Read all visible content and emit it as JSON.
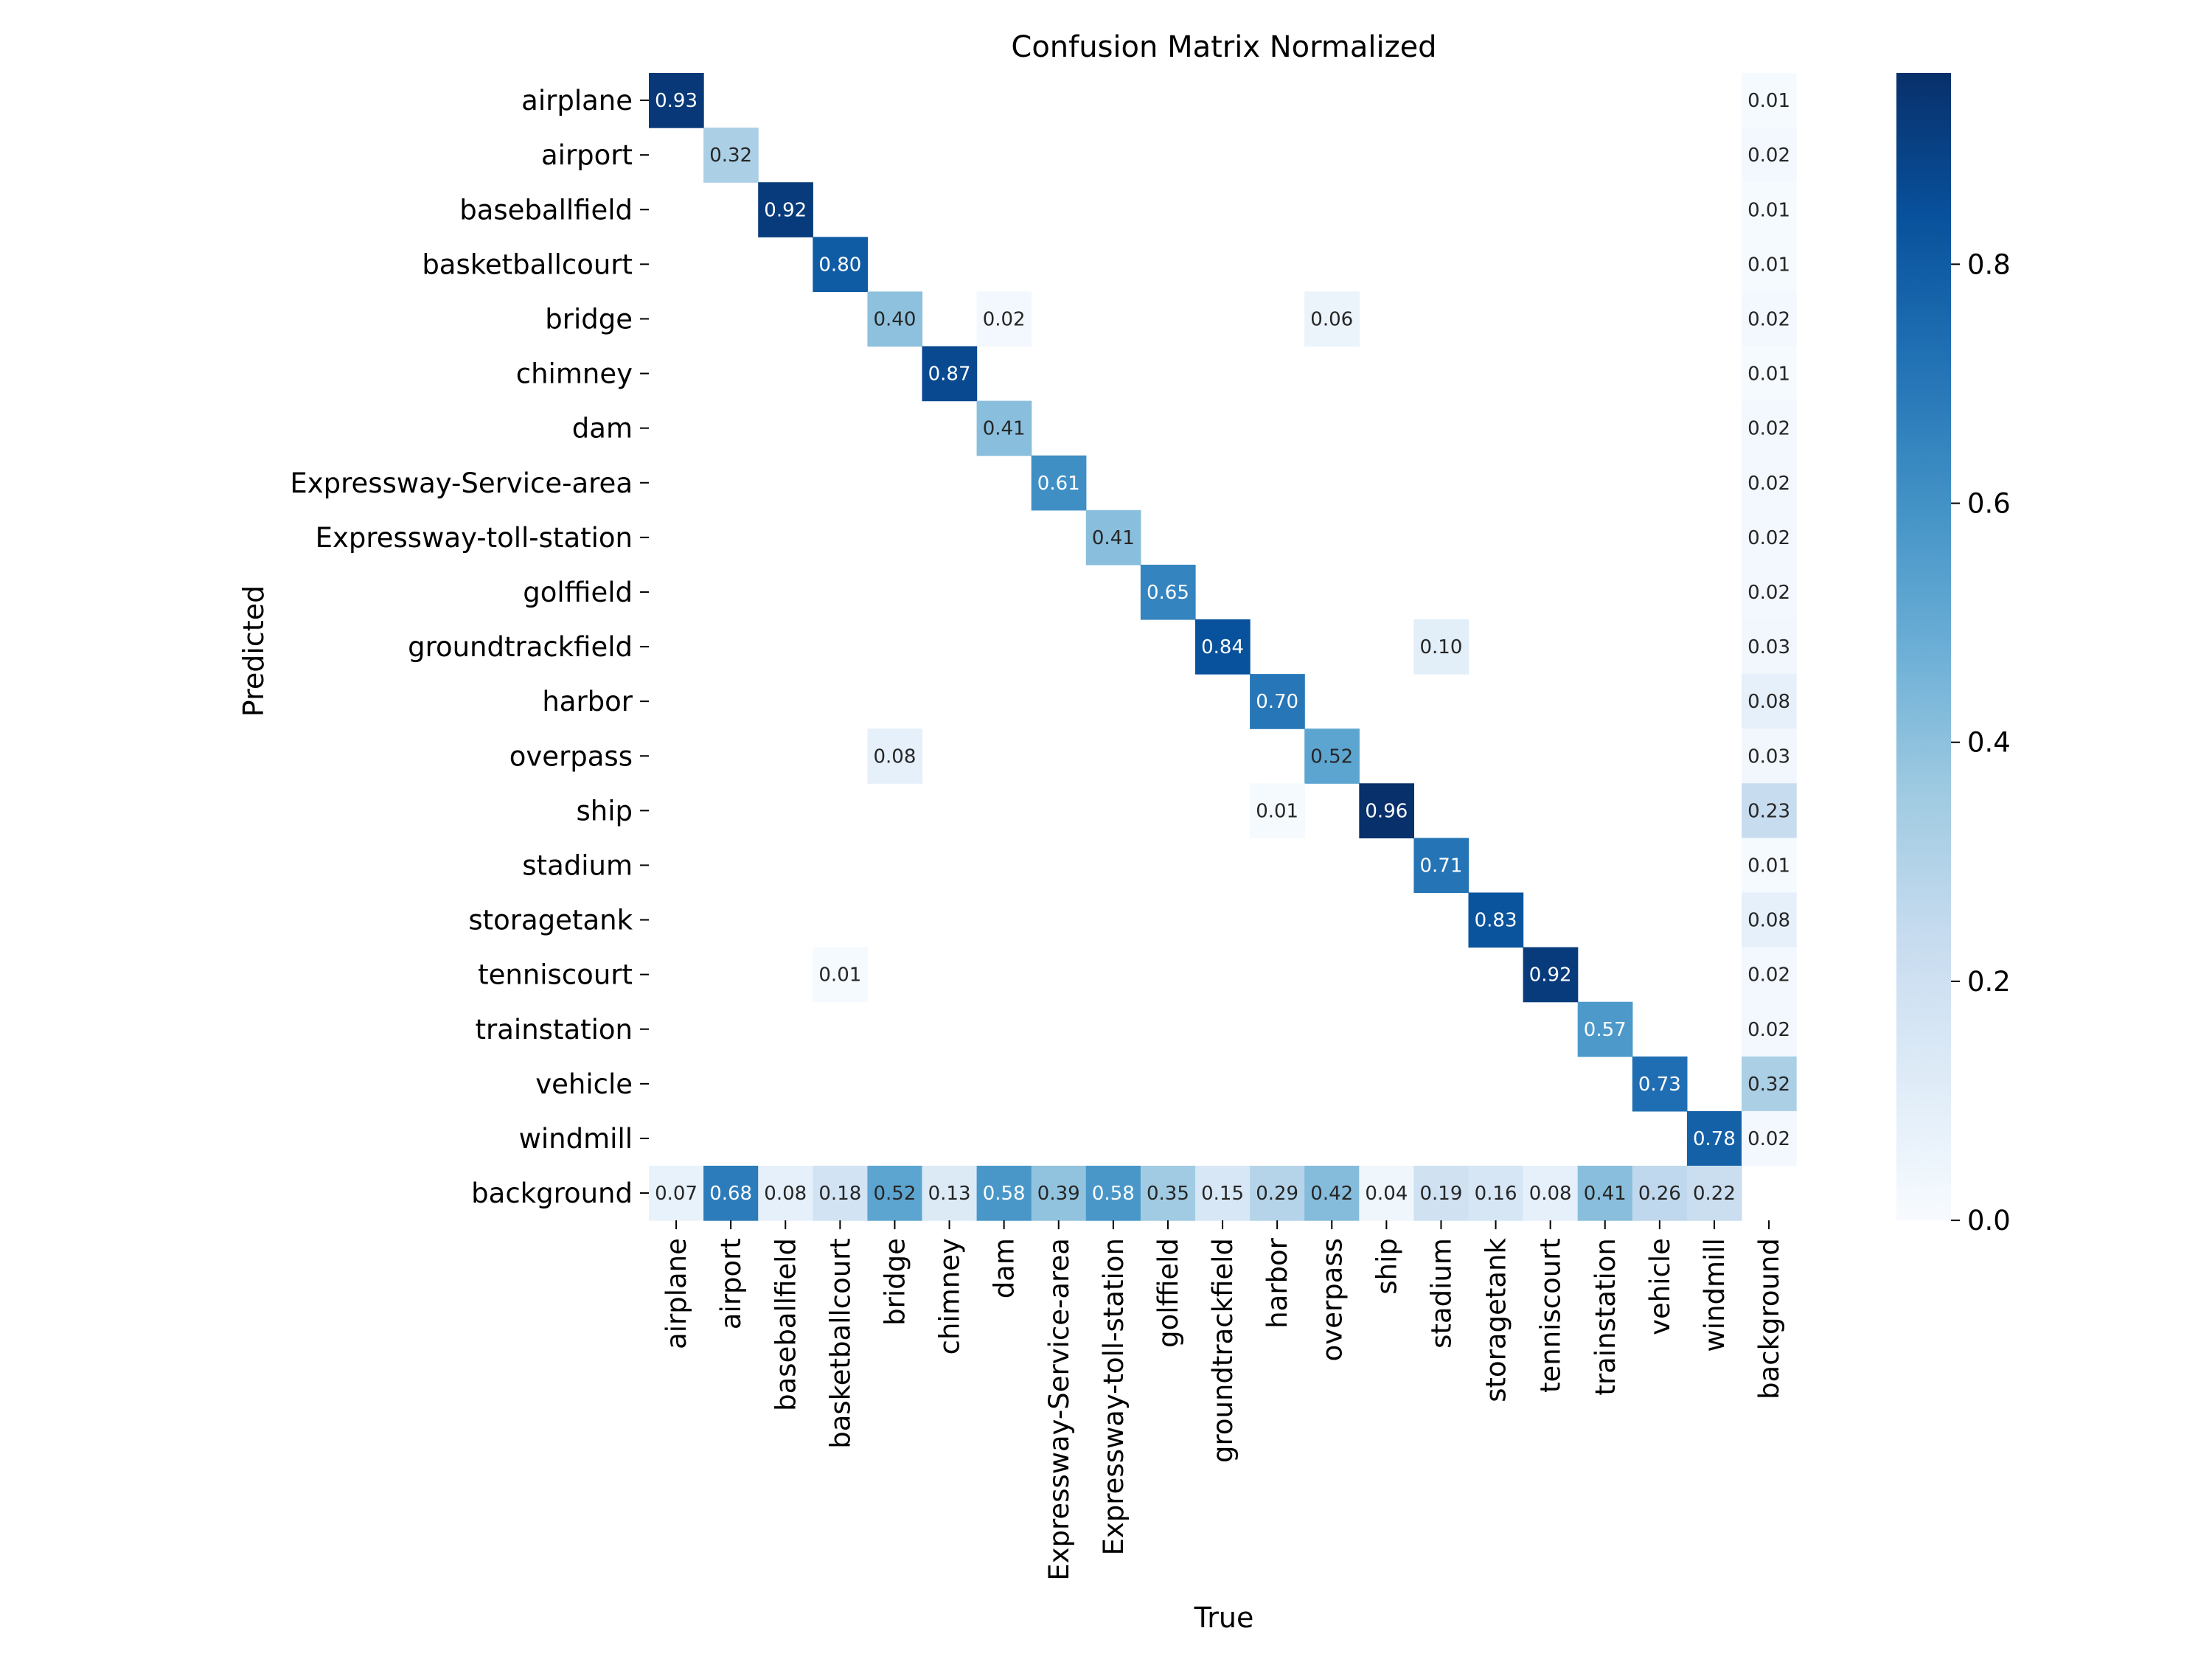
{
  "chart_data": {
    "type": "heatmap",
    "title": "Confusion Matrix Normalized",
    "xlabel": "True",
    "ylabel": "Predicted",
    "colormap": "Blues",
    "vmin": 0.0,
    "vmax": 0.96,
    "colorbar_ticks": [
      0.0,
      0.2,
      0.4,
      0.6,
      0.8
    ],
    "colorbar_tick_labels": [
      "0.0",
      "0.2",
      "0.4",
      "0.6",
      "0.8"
    ],
    "categories": [
      "airplane",
      "airport",
      "baseballfield",
      "basketballcourt",
      "bridge",
      "chimney",
      "dam",
      "Expressway-Service-area",
      "Expressway-toll-station",
      "golffield",
      "groundtrackfield",
      "harbor",
      "overpass",
      "ship",
      "stadium",
      "storagetank",
      "tenniscourt",
      "trainstation",
      "vehicle",
      "windmill",
      "background"
    ],
    "cells": [
      {
        "row": 0,
        "col": 0,
        "value": 0.93,
        "label": "0.93"
      },
      {
        "row": 0,
        "col": 20,
        "value": 0.01,
        "label": "0.01"
      },
      {
        "row": 1,
        "col": 1,
        "value": 0.32,
        "label": "0.32"
      },
      {
        "row": 1,
        "col": 20,
        "value": 0.02,
        "label": "0.02"
      },
      {
        "row": 2,
        "col": 2,
        "value": 0.92,
        "label": "0.92"
      },
      {
        "row": 2,
        "col": 20,
        "value": 0.01,
        "label": "0.01"
      },
      {
        "row": 3,
        "col": 3,
        "value": 0.8,
        "label": "0.80"
      },
      {
        "row": 3,
        "col": 20,
        "value": 0.01,
        "label": "0.01"
      },
      {
        "row": 4,
        "col": 4,
        "value": 0.4,
        "label": "0.40"
      },
      {
        "row": 4,
        "col": 6,
        "value": 0.02,
        "label": "0.02"
      },
      {
        "row": 4,
        "col": 12,
        "value": 0.06,
        "label": "0.06"
      },
      {
        "row": 4,
        "col": 20,
        "value": 0.02,
        "label": "0.02"
      },
      {
        "row": 5,
        "col": 5,
        "value": 0.87,
        "label": "0.87"
      },
      {
        "row": 5,
        "col": 20,
        "value": 0.01,
        "label": "0.01"
      },
      {
        "row": 6,
        "col": 6,
        "value": 0.41,
        "label": "0.41"
      },
      {
        "row": 6,
        "col": 20,
        "value": 0.02,
        "label": "0.02"
      },
      {
        "row": 7,
        "col": 7,
        "value": 0.61,
        "label": "0.61"
      },
      {
        "row": 7,
        "col": 20,
        "value": 0.02,
        "label": "0.02"
      },
      {
        "row": 8,
        "col": 8,
        "value": 0.41,
        "label": "0.41"
      },
      {
        "row": 8,
        "col": 20,
        "value": 0.02,
        "label": "0.02"
      },
      {
        "row": 9,
        "col": 9,
        "value": 0.65,
        "label": "0.65"
      },
      {
        "row": 9,
        "col": 20,
        "value": 0.02,
        "label": "0.02"
      },
      {
        "row": 10,
        "col": 10,
        "value": 0.84,
        "label": "0.84"
      },
      {
        "row": 10,
        "col": 14,
        "value": 0.1,
        "label": "0.10"
      },
      {
        "row": 10,
        "col": 20,
        "value": 0.03,
        "label": "0.03"
      },
      {
        "row": 11,
        "col": 11,
        "value": 0.7,
        "label": "0.70"
      },
      {
        "row": 11,
        "col": 20,
        "value": 0.08,
        "label": "0.08"
      },
      {
        "row": 12,
        "col": 4,
        "value": 0.08,
        "label": "0.08"
      },
      {
        "row": 12,
        "col": 12,
        "value": 0.52,
        "label": "0.52"
      },
      {
        "row": 12,
        "col": 20,
        "value": 0.03,
        "label": "0.03"
      },
      {
        "row": 13,
        "col": 11,
        "value": 0.01,
        "label": "0.01"
      },
      {
        "row": 13,
        "col": 13,
        "value": 0.96,
        "label": "0.96"
      },
      {
        "row": 13,
        "col": 20,
        "value": 0.23,
        "label": "0.23"
      },
      {
        "row": 14,
        "col": 14,
        "value": 0.71,
        "label": "0.71"
      },
      {
        "row": 14,
        "col": 20,
        "value": 0.01,
        "label": "0.01"
      },
      {
        "row": 15,
        "col": 15,
        "value": 0.83,
        "label": "0.83"
      },
      {
        "row": 15,
        "col": 20,
        "value": 0.08,
        "label": "0.08"
      },
      {
        "row": 16,
        "col": 3,
        "value": 0.01,
        "label": "0.01"
      },
      {
        "row": 16,
        "col": 16,
        "value": 0.92,
        "label": "0.92"
      },
      {
        "row": 16,
        "col": 20,
        "value": 0.02,
        "label": "0.02"
      },
      {
        "row": 17,
        "col": 17,
        "value": 0.57,
        "label": "0.57"
      },
      {
        "row": 17,
        "col": 20,
        "value": 0.02,
        "label": "0.02"
      },
      {
        "row": 18,
        "col": 18,
        "value": 0.73,
        "label": "0.73"
      },
      {
        "row": 18,
        "col": 20,
        "value": 0.32,
        "label": "0.32"
      },
      {
        "row": 19,
        "col": 19,
        "value": 0.78,
        "label": "0.78"
      },
      {
        "row": 19,
        "col": 20,
        "value": 0.02,
        "label": "0.02"
      },
      {
        "row": 20,
        "col": 0,
        "value": 0.07,
        "label": "0.07"
      },
      {
        "row": 20,
        "col": 1,
        "value": 0.68,
        "label": "0.68"
      },
      {
        "row": 20,
        "col": 2,
        "value": 0.08,
        "label": "0.08"
      },
      {
        "row": 20,
        "col": 3,
        "value": 0.18,
        "label": "0.18"
      },
      {
        "row": 20,
        "col": 4,
        "value": 0.52,
        "label": "0.52"
      },
      {
        "row": 20,
        "col": 5,
        "value": 0.13,
        "label": "0.13"
      },
      {
        "row": 20,
        "col": 6,
        "value": 0.58,
        "label": "0.58"
      },
      {
        "row": 20,
        "col": 7,
        "value": 0.39,
        "label": "0.39"
      },
      {
        "row": 20,
        "col": 8,
        "value": 0.58,
        "label": "0.58"
      },
      {
        "row": 20,
        "col": 9,
        "value": 0.35,
        "label": "0.35"
      },
      {
        "row": 20,
        "col": 10,
        "value": 0.15,
        "label": "0.15"
      },
      {
        "row": 20,
        "col": 11,
        "value": 0.29,
        "label": "0.29"
      },
      {
        "row": 20,
        "col": 12,
        "value": 0.42,
        "label": "0.42"
      },
      {
        "row": 20,
        "col": 13,
        "value": 0.04,
        "label": "0.04"
      },
      {
        "row": 20,
        "col": 14,
        "value": 0.19,
        "label": "0.19"
      },
      {
        "row": 20,
        "col": 15,
        "value": 0.16,
        "label": "0.16"
      },
      {
        "row": 20,
        "col": 16,
        "value": 0.08,
        "label": "0.08"
      },
      {
        "row": 20,
        "col": 17,
        "value": 0.41,
        "label": "0.41"
      },
      {
        "row": 20,
        "col": 18,
        "value": 0.26,
        "label": "0.26"
      },
      {
        "row": 20,
        "col": 19,
        "value": 0.22,
        "label": "0.22"
      }
    ]
  }
}
